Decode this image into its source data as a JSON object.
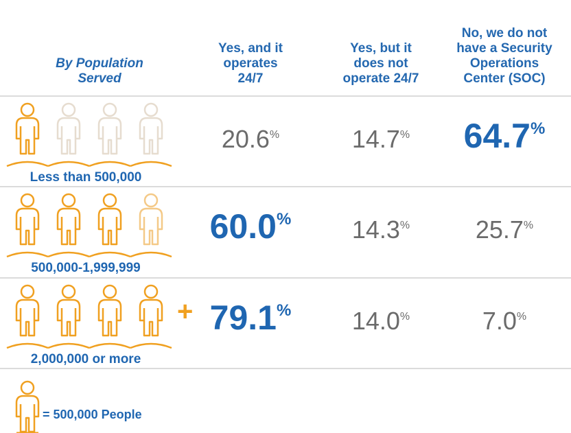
{
  "header": {
    "columns": [
      {
        "lines": [
          "By Population",
          "Served"
        ],
        "italic": true
      },
      {
        "lines": [
          "Yes, and it",
          "operates",
          "24/7"
        ]
      },
      {
        "lines": [
          "Yes, but it",
          "does not",
          "operate 24/7"
        ]
      },
      {
        "lines": [
          "No, we do not",
          "have a Security",
          "Operations",
          "Center (SOC)"
        ]
      }
    ]
  },
  "table": {
    "rows": [
      {
        "label": "Less than 500,000",
        "icons": [
          "full",
          "faint",
          "faint",
          "faint"
        ],
        "cells": [
          {
            "text": "20.6",
            "unit": "%"
          },
          {
            "text": "14.7",
            "unit": "%"
          },
          {
            "text": "64.7",
            "unit": "%",
            "highlight": true
          }
        ]
      },
      {
        "label": "500,000-1,999,999",
        "icons": [
          "full",
          "full",
          "full",
          "light"
        ],
        "cells": [
          {
            "text": "60.0",
            "unit": "%",
            "highlight": true
          },
          {
            "text": "14.3",
            "unit": "%"
          },
          {
            "text": "25.7",
            "unit": "%"
          }
        ]
      },
      {
        "label": "2,000,000 or more",
        "icons": [
          "full",
          "full",
          "full",
          "full"
        ],
        "extra": "+",
        "cells": [
          {
            "text": "79.1",
            "unit": "%",
            "highlight": true
          },
          {
            "text": "14.0",
            "unit": "%"
          },
          {
            "text": "7.0",
            "unit": "%"
          }
        ]
      }
    ]
  },
  "legend": {
    "text": "= 500,000 People"
  }
}
